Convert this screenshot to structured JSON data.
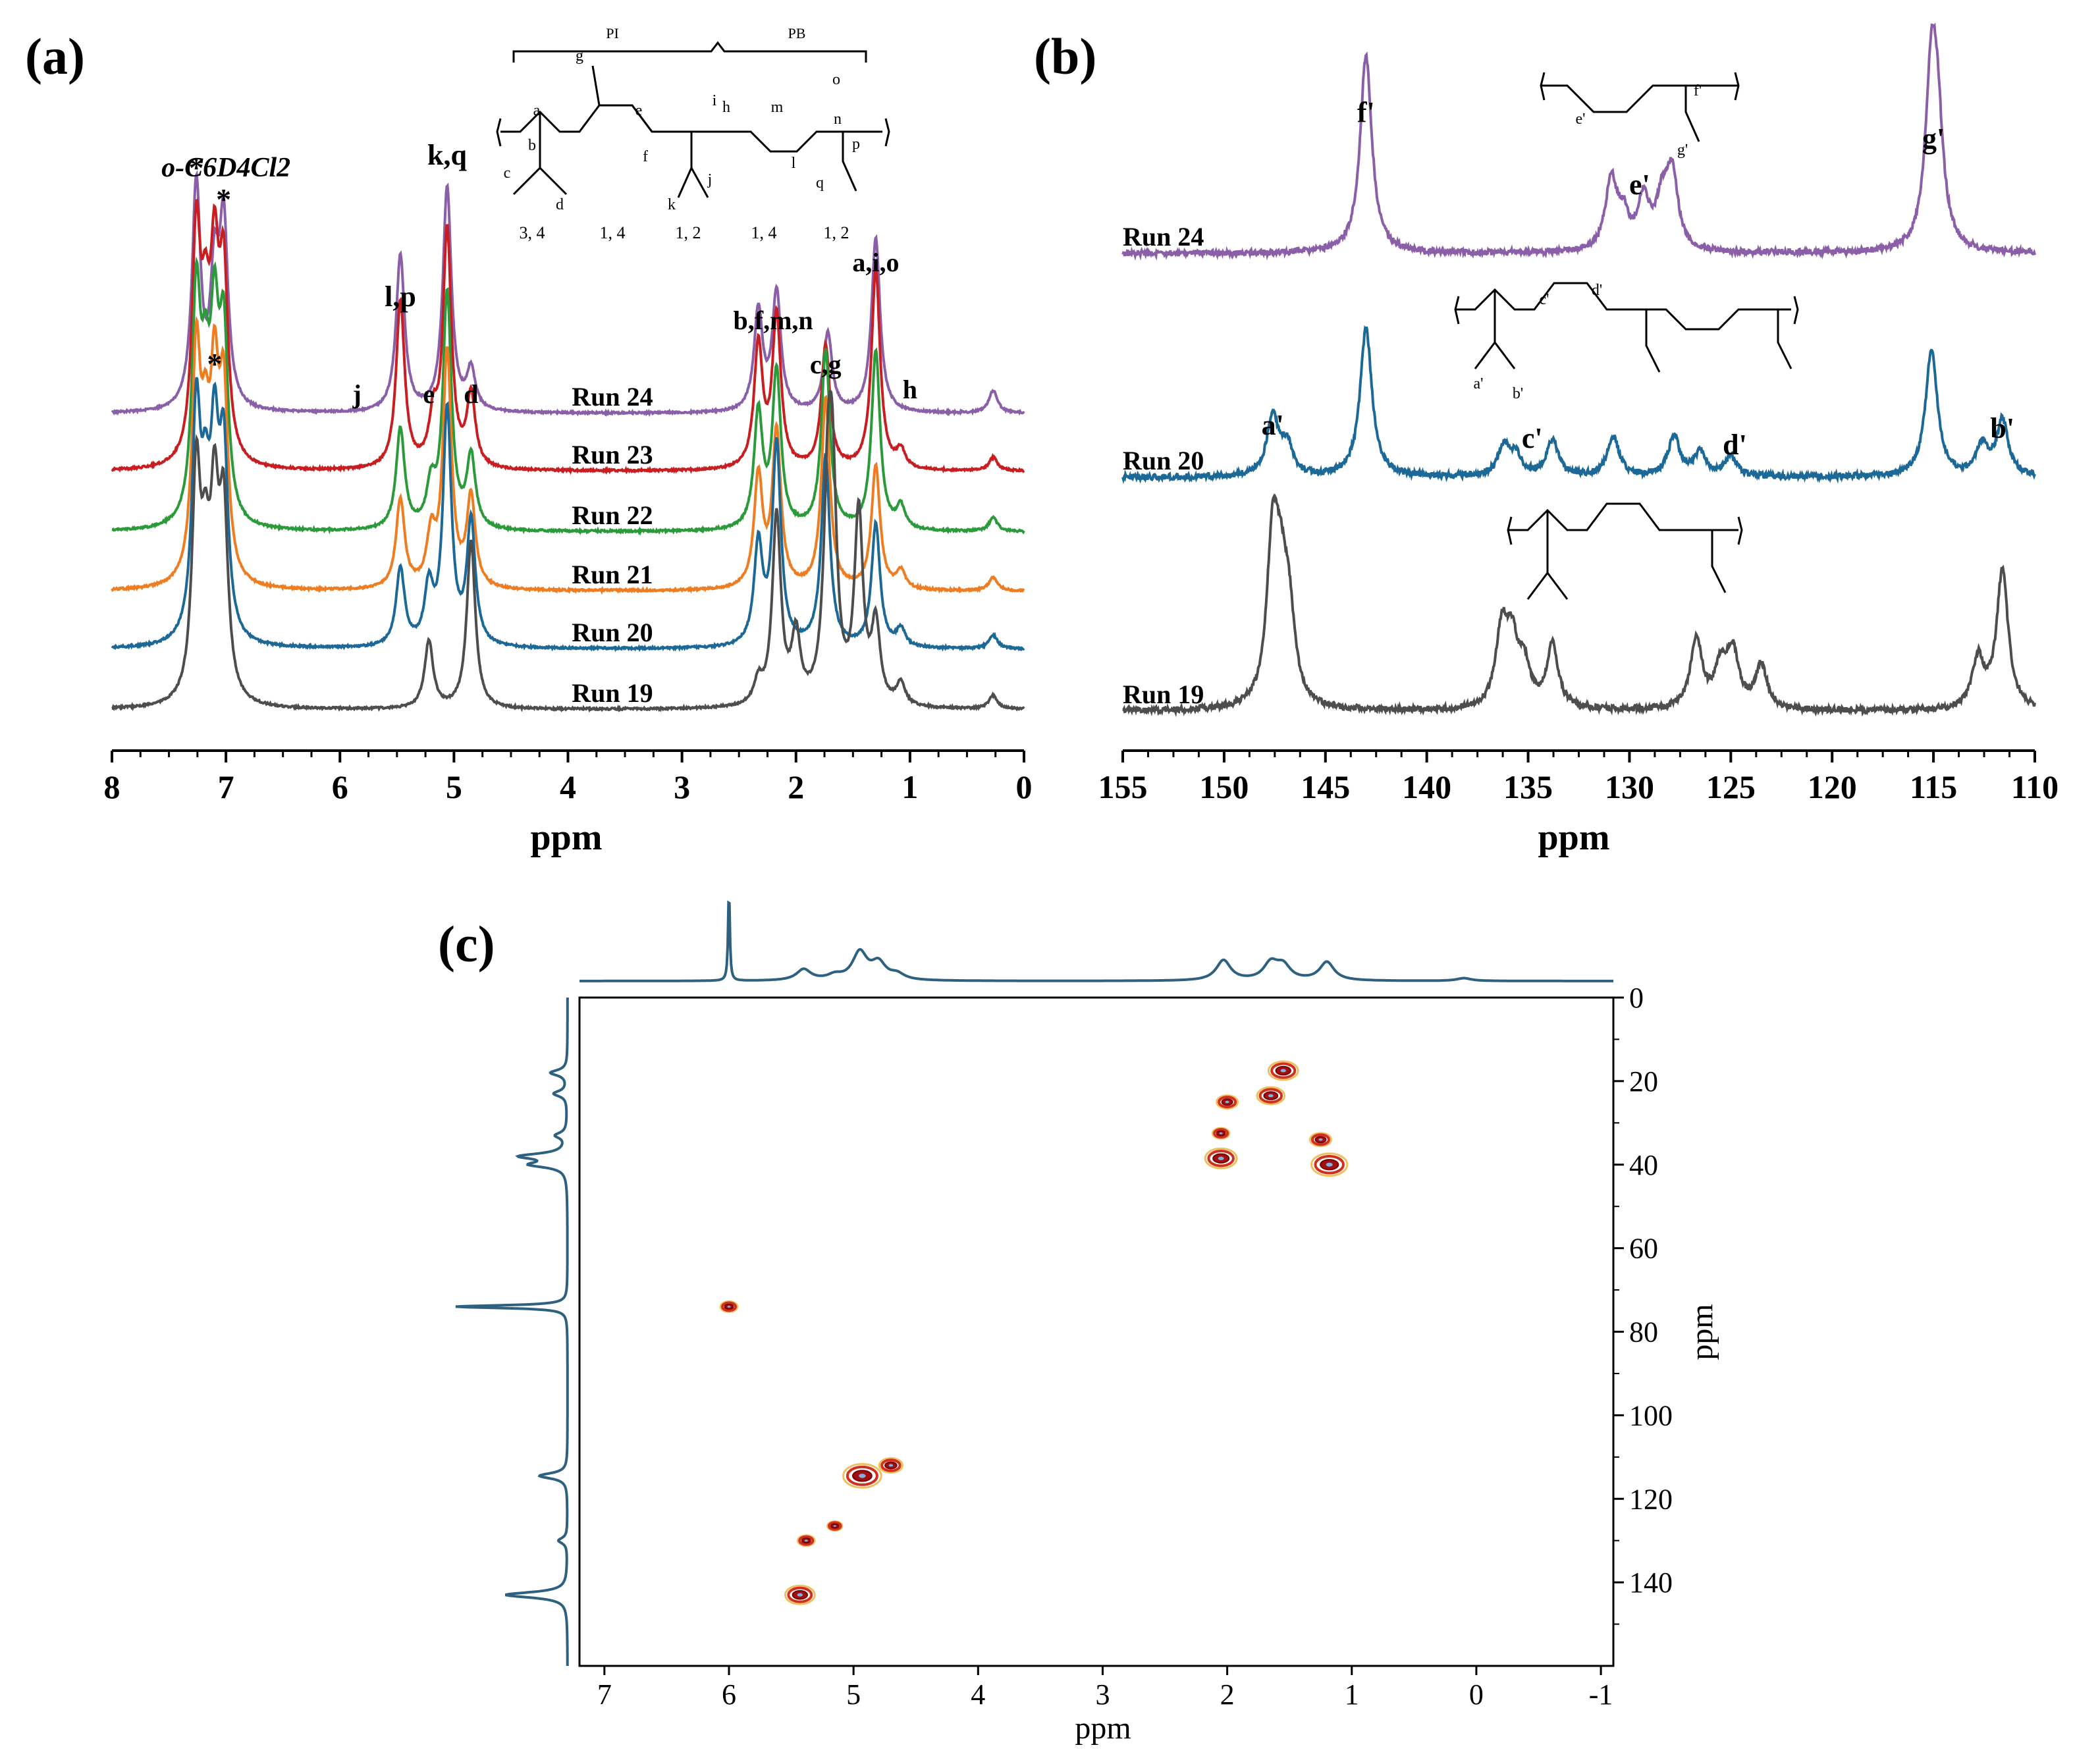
{
  "figure": {
    "panel_labels": [
      "(a)",
      "(b)",
      "(c)"
    ]
  },
  "chart_data": [
    {
      "panel": "(a)",
      "type": "line",
      "title": "",
      "xlabel": "ppm",
      "ylabel": "",
      "xlim": [
        8,
        0
      ],
      "xticks": [
        8,
        7,
        6,
        5,
        4,
        3,
        2,
        1,
        0
      ],
      "legend": "inline labels",
      "grid": false,
      "series": [
        {
          "name": "Run 24",
          "color": "#8b5fa8",
          "peaks": [
            [
              7.26,
              1.0
            ],
            [
              7.1,
              0.55
            ],
            [
              7.02,
              0.8
            ],
            [
              5.47,
              0.7
            ],
            [
              5.06,
              1.0
            ],
            [
              4.85,
              0.18
            ],
            [
              2.33,
              0.45
            ],
            [
              2.17,
              0.53
            ],
            [
              1.72,
              0.35
            ],
            [
              1.3,
              0.78
            ],
            [
              0.27,
              0.1
            ]
          ]
        },
        {
          "name": "Run 23",
          "color": "#c81e22",
          "peaks": [
            [
              7.26,
              1.0
            ],
            [
              7.18,
              0.5
            ],
            [
              7.1,
              0.8
            ],
            [
              7.02,
              0.8
            ],
            [
              5.47,
              0.75
            ],
            [
              5.18,
              0.2
            ],
            [
              5.06,
              1.05
            ],
            [
              4.85,
              0.32
            ],
            [
              2.33,
              0.55
            ],
            [
              2.17,
              0.68
            ],
            [
              1.74,
              0.55
            ],
            [
              1.3,
              0.9
            ],
            [
              1.08,
              0.08
            ],
            [
              0.27,
              0.06
            ]
          ]
        },
        {
          "name": "Run 22",
          "color": "#2a9a3a",
          "peaks": [
            [
              7.26,
              1.0
            ],
            [
              7.18,
              0.5
            ],
            [
              7.1,
              0.8
            ],
            [
              7.02,
              0.8
            ],
            [
              5.47,
              0.45
            ],
            [
              5.2,
              0.18
            ],
            [
              5.06,
              1.05
            ],
            [
              4.85,
              0.32
            ],
            [
              2.33,
              0.52
            ],
            [
              2.17,
              0.7
            ],
            [
              1.74,
              0.8
            ],
            [
              1.3,
              0.8
            ],
            [
              1.08,
              0.1
            ],
            [
              0.27,
              0.06
            ]
          ]
        },
        {
          "name": "Run 21",
          "color": "#ee7d22",
          "peaks": [
            [
              7.26,
              1.0
            ],
            [
              7.18,
              0.5
            ],
            [
              7.1,
              0.8
            ],
            [
              7.02,
              0.8
            ],
            [
              5.47,
              0.4
            ],
            [
              5.2,
              0.22
            ],
            [
              5.06,
              1.05
            ],
            [
              4.85,
              0.4
            ],
            [
              2.33,
              0.5
            ],
            [
              2.17,
              0.7
            ],
            [
              1.74,
              0.85
            ],
            [
              1.3,
              0.55
            ],
            [
              1.08,
              0.08
            ],
            [
              0.27,
              0.06
            ]
          ]
        },
        {
          "name": "Run 20",
          "color": "#1c6896",
          "peaks": [
            [
              7.26,
              1.0
            ],
            [
              7.18,
              0.5
            ],
            [
              7.1,
              0.8
            ],
            [
              7.02,
              0.8
            ],
            [
              5.47,
              0.35
            ],
            [
              5.22,
              0.25
            ],
            [
              5.06,
              1.05
            ],
            [
              4.85,
              0.55
            ],
            [
              2.33,
              0.45
            ],
            [
              2.17,
              0.9
            ],
            [
              1.74,
              0.85
            ],
            [
              1.3,
              0.55
            ],
            [
              1.08,
              0.08
            ],
            [
              0.27,
              0.06
            ]
          ]
        },
        {
          "name": "Run 19",
          "color": "#4d4d4d",
          "peaks": [
            [
              7.26,
              1.0
            ],
            [
              7.18,
              0.5
            ],
            [
              7.1,
              0.8
            ],
            [
              7.02,
              0.8
            ],
            [
              5.22,
              0.3
            ],
            [
              4.85,
              0.75
            ],
            [
              2.33,
              0.1
            ],
            [
              2.17,
              0.85
            ],
            [
              2.0,
              0.3
            ],
            [
              1.72,
              0.8
            ],
            [
              1.68,
              0.85
            ],
            [
              1.45,
              0.85
            ],
            [
              1.3,
              0.35
            ],
            [
              1.08,
              0.1
            ],
            [
              0.27,
              0.06
            ]
          ]
        }
      ],
      "annotations": [
        {
          "text": "o-C6D4Cl2",
          "x": 7.0
        },
        {
          "text": "*",
          "x": 7.26
        },
        {
          "text": "*",
          "x": 7.02
        },
        {
          "text": "*",
          "x": 7.1
        },
        {
          "text": "k,q",
          "x": 5.06
        },
        {
          "text": "l,p",
          "x": 5.47
        },
        {
          "text": "j",
          "x": 5.85
        },
        {
          "text": "e",
          "x": 5.22
        },
        {
          "text": "d",
          "x": 4.85
        },
        {
          "text": "b,f,m,n",
          "x": 2.2
        },
        {
          "text": "c,g",
          "x": 1.74
        },
        {
          "text": "a,i,o",
          "x": 1.3
        },
        {
          "text": "h",
          "x": 1.0
        }
      ],
      "structure_labels": {
        "blocks": [
          "PI",
          "PB"
        ],
        "atoms": [
          "a",
          "b",
          "c",
          "d",
          "e",
          "f",
          "g",
          "h",
          "i",
          "j",
          "k",
          "l",
          "m",
          "n",
          "o",
          "p",
          "q"
        ],
        "units": [
          "3, 4",
          "1, 4",
          "1, 2",
          "1, 4",
          "1, 2"
        ]
      }
    },
    {
      "panel": "(b)",
      "type": "line",
      "title": "",
      "xlabel": "ppm",
      "ylabel": "",
      "xlim": [
        155,
        110
      ],
      "xticks": [
        155,
        150,
        145,
        140,
        135,
        130,
        125,
        120,
        115,
        110
      ],
      "legend": "inline labels",
      "grid": false,
      "series": [
        {
          "name": "Run 24",
          "color": "#8b5fa8",
          "peaks": [
            [
              143.0,
              1.0
            ],
            [
              130.9,
              0.35
            ],
            [
              130.3,
              0.15
            ],
            [
              129.3,
              0.25
            ],
            [
              128.4,
              0.22
            ],
            [
              127.9,
              0.38
            ],
            [
              115.1,
              0.85
            ],
            [
              114.8,
              0.5
            ]
          ]
        },
        {
          "name": "Run 20",
          "color": "#1c6896",
          "peaks": [
            [
              147.6,
              0.3
            ],
            [
              146.9,
              0.15
            ],
            [
              143.0,
              0.75
            ],
            [
              136.2,
              0.15
            ],
            [
              135.6,
              0.1
            ],
            [
              133.8,
              0.18
            ],
            [
              130.8,
              0.2
            ],
            [
              127.8,
              0.2
            ],
            [
              126.5,
              0.12
            ],
            [
              125.0,
              0.1
            ],
            [
              115.1,
              0.65
            ],
            [
              112.6,
              0.15
            ],
            [
              111.6,
              0.28
            ]
          ]
        },
        {
          "name": "Run 19",
          "color": "#4d4d4d",
          "peaks": [
            [
              147.6,
              0.8
            ],
            [
              147.2,
              0.45
            ],
            [
              146.8,
              0.4
            ],
            [
              136.3,
              0.38
            ],
            [
              135.8,
              0.3
            ],
            [
              135.2,
              0.2
            ],
            [
              133.8,
              0.32
            ],
            [
              126.7,
              0.35
            ],
            [
              125.5,
              0.2
            ],
            [
              124.9,
              0.28
            ],
            [
              123.5,
              0.22
            ],
            [
              112.8,
              0.25
            ],
            [
              111.6,
              0.7
            ]
          ]
        }
      ],
      "annotations": [
        {
          "text": "f'",
          "x": 143.0
        },
        {
          "text": "g'",
          "x": 115.0
        },
        {
          "text": "e'",
          "x": 129.5
        },
        {
          "text": "a'",
          "x": 147.6
        },
        {
          "text": "c'",
          "x": 134.8
        },
        {
          "text": "d'",
          "x": 124.8
        },
        {
          "text": "b'",
          "x": 111.6
        }
      ],
      "structure_labels": [
        "e'",
        "f'",
        "g'",
        "a'",
        "b'",
        "c'",
        "d'"
      ]
    },
    {
      "panel": "(c)",
      "type": "heatmap",
      "title": "",
      "xlabel": "ppm",
      "ylabel": "ppm",
      "xlim": [
        7.2,
        -1.1
      ],
      "ylim": [
        0,
        160
      ],
      "xticks": [
        7,
        6,
        5,
        4,
        3,
        2,
        1,
        0,
        -1
      ],
      "yticks": [
        0,
        20,
        40,
        60,
        80,
        100,
        120,
        140
      ],
      "grid": false,
      "cross_peaks": [
        {
          "x": 1.55,
          "y": 17.5,
          "size": 1.0
        },
        {
          "x": 1.65,
          "y": 23.5,
          "size": 0.9
        },
        {
          "x": 2.0,
          "y": 25.0,
          "size": 0.6
        },
        {
          "x": 2.05,
          "y": 32.5,
          "size": 0.4
        },
        {
          "x": 1.25,
          "y": 34.0,
          "size": 0.6
        },
        {
          "x": 2.05,
          "y": 38.5,
          "size": 1.1
        },
        {
          "x": 1.18,
          "y": 40.0,
          "size": 1.3
        },
        {
          "x": 6.0,
          "y": 74.0,
          "size": 0.4
        },
        {
          "x": 4.93,
          "y": 114.5,
          "size": 1.4
        },
        {
          "x": 4.7,
          "y": 112.0,
          "size": 0.7
        },
        {
          "x": 5.15,
          "y": 126.5,
          "size": 0.3
        },
        {
          "x": 5.38,
          "y": 130.0,
          "size": 0.4
        },
        {
          "x": 5.43,
          "y": 143.0,
          "size": 1.0
        }
      ],
      "top_projection_peaks": [
        [
          6.0,
          1.0
        ],
        [
          5.4,
          0.12
        ],
        [
          5.15,
          0.05
        ],
        [
          4.95,
          0.3
        ],
        [
          4.8,
          0.18
        ],
        [
          4.65,
          0.06
        ],
        [
          2.03,
          0.22
        ],
        [
          1.65,
          0.18
        ],
        [
          1.55,
          0.15
        ],
        [
          1.2,
          0.2
        ],
        [
          0.1,
          0.03
        ]
      ],
      "left_projection_peaks": [
        [
          18,
          0.15
        ],
        [
          23,
          0.12
        ],
        [
          33,
          0.1
        ],
        [
          38,
          0.4
        ],
        [
          40,
          0.3
        ],
        [
          74,
          1.0
        ],
        [
          114.5,
          0.25
        ],
        [
          130,
          0.08
        ],
        [
          143,
          0.55
        ]
      ]
    }
  ]
}
